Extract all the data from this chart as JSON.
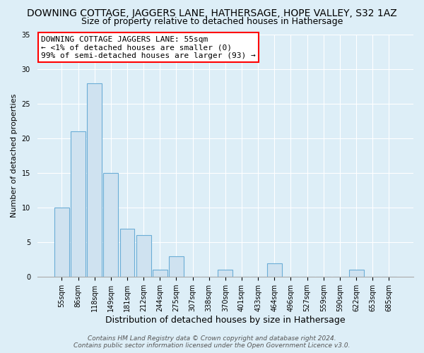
{
  "title": "DOWNING COTTAGE, JAGGERS LANE, HATHERSAGE, HOPE VALLEY, S32 1AZ",
  "subtitle": "Size of property relative to detached houses in Hathersage",
  "xlabel": "Distribution of detached houses by size in Hathersage",
  "ylabel": "Number of detached properties",
  "bin_labels": [
    "55sqm",
    "86sqm",
    "118sqm",
    "149sqm",
    "181sqm",
    "212sqm",
    "244sqm",
    "275sqm",
    "307sqm",
    "338sqm",
    "370sqm",
    "401sqm",
    "433sqm",
    "464sqm",
    "496sqm",
    "527sqm",
    "559sqm",
    "590sqm",
    "622sqm",
    "653sqm",
    "685sqm"
  ],
  "bar_values": [
    10,
    21,
    28,
    15,
    7,
    6,
    1,
    3,
    0,
    0,
    1,
    0,
    0,
    2,
    0,
    0,
    0,
    0,
    1,
    0,
    0
  ],
  "bar_fill_color": "#cfe2f0",
  "bar_edge_color": "#6badd6",
  "ylim": [
    0,
    35
  ],
  "yticks": [
    0,
    5,
    10,
    15,
    20,
    25,
    30,
    35
  ],
  "annotation_title": "DOWNING COTTAGE JAGGERS LANE: 55sqm",
  "annotation_line1": "← <1% of detached houses are smaller (0)",
  "annotation_line2": "99% of semi-detached houses are larger (93) →",
  "footer_line1": "Contains HM Land Registry data © Crown copyright and database right 2024.",
  "footer_line2": "Contains public sector information licensed under the Open Government Licence v3.0.",
  "background_color": "#ddeef7",
  "plot_bg_color": "#ddeef7",
  "title_fontsize": 10,
  "subtitle_fontsize": 9,
  "xlabel_fontsize": 9,
  "ylabel_fontsize": 8,
  "tick_fontsize": 7,
  "annotation_fontsize": 8,
  "footer_fontsize": 6.5
}
